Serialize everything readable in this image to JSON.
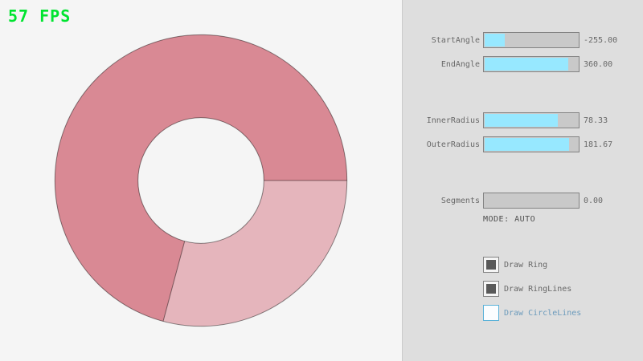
{
  "fps_text": "57 FPS",
  "colors": {
    "fps_green": "#00e430",
    "panel_background": "#dedede",
    "slider_fill_cyan": "#97e8ff",
    "slider_track_gray": "#c9c9c9",
    "slider_border": "#838383",
    "label_gray": "#686868",
    "focused_blue_border": "#5bb2d9",
    "focused_blue_text": "#6c9bbc",
    "ring_single_pass": "#e5b5bc",
    "ring_double_pass": "#d98994",
    "ring_line": "rgba(0,0,0,0.45)"
  },
  "ring": {
    "start_angle": -255,
    "end_angle": 360,
    "inner_radius": 78.33,
    "outer_radius": 181.67,
    "fill_color_single": "#e5b5bc",
    "fill_color_double": "#d98994",
    "line_color": "rgba(0,0,0,0.45)"
  },
  "panel": {
    "sliders": [
      {
        "label": "StartAngle",
        "value": "-255.00",
        "fill_pct": 21.67
      },
      {
        "label": "EndAngle",
        "value": "360.00",
        "fill_pct": 90.0
      },
      {
        "label": "InnerRadius",
        "value": "78.33",
        "fill_pct": 78.33
      },
      {
        "label": "OuterRadius",
        "value": "181.67",
        "fill_pct": 90.83
      },
      {
        "label": "Segments",
        "value": "0.00",
        "fill_pct": 0
      }
    ],
    "mode_text": "MODE: AUTO",
    "checkboxes": [
      {
        "label": "Draw Ring",
        "checked": true,
        "state": "normal"
      },
      {
        "label": "Draw RingLines",
        "checked": true,
        "state": "normal"
      },
      {
        "label": "Draw CircleLines",
        "checked": false,
        "state": "focused"
      }
    ]
  }
}
